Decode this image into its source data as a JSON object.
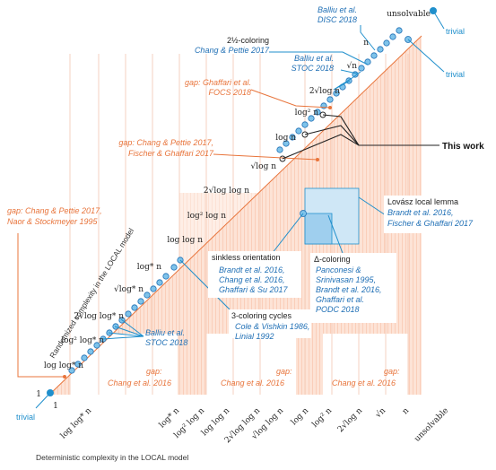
{
  "axes": {
    "x_title": "Deterministic complexity in the LOCAL model",
    "y_title": "Randomized complexity in the LOCAL model",
    "x_ticks": [
      "1",
      "log log* n",
      "log* n",
      "log² log n",
      "log log n",
      "2√log log n",
      "√log log n",
      "log n",
      "log² n",
      "2√log n",
      "√n",
      "n",
      "unsolvable"
    ],
    "y_ticks": [
      "unsolvable",
      "n",
      "√n",
      "2√log n",
      "log² n",
      "log n",
      "√log n",
      "2√log log n",
      "log² log n",
      "log log n",
      "log* n",
      "√log* n",
      "2√log log* n",
      "log² log* n",
      "log log* n",
      "1"
    ]
  },
  "labels": {
    "trivial_top": "trivial",
    "trivial_mid": "trivial",
    "trivial_bottom": "trivial",
    "unsolvable": "unsolvable",
    "this_work": "This work",
    "balliu_disc_1": "Balliu et al.",
    "balliu_disc_2": "DISC 2018",
    "two_half_1": "2½-coloring",
    "two_half_2": "Chang & Pettie 2017",
    "balliu_stoc_top_1": "Balliu et al.",
    "balliu_stoc_top_2": "STOC 2018",
    "gap_ghaffari_1": "gap: Ghaffari et al.",
    "gap_ghaffari_2": "FOCS 2018",
    "gap_chang_1": "gap: Chang & Pettie 2017,",
    "gap_chang_2": "Fischer & Ghaffari 2017",
    "gap_naor_1": "gap: Chang & Pettie 2017,",
    "gap_naor_2": "Naor & Stockmeyer 1995",
    "lovasz_1": "Lovász local lemma",
    "lovasz_2": "Brandt et al. 2016,",
    "lovasz_3": "Fischer & Ghaffari 2017",
    "sinkless_1": "sinkless orientation",
    "sinkless_2": "Brandt et al. 2016,",
    "sinkless_3": "Chang et al. 2016,",
    "sinkless_4": "Ghaffari & Su 2017",
    "delta_1": "Δ-coloring",
    "delta_2": "Panconesi &",
    "delta_3": "Srinivasan 1995,",
    "delta_4": "Brandt et al. 2016,",
    "delta_5": "Ghaffari et al.",
    "delta_6": "PODC 2018",
    "three_col_1": "3-coloring cycles",
    "three_col_2": "Cole & Vishkin 1986,",
    "three_col_3": "Linial 1992",
    "balliu_stoc_bot_1": "Balliu et al.",
    "balliu_stoc_bot_2": "STOC 2018",
    "gap_bl_1": "gap:",
    "gap_bl_2": "Chang et al. 2016",
    "gap_bm_1": "gap:",
    "gap_bm_2": "Chang et al. 2016",
    "gap_br_1": "gap:",
    "gap_br_2": "Chang et al. 2016"
  },
  "colors": {
    "blue": "#1f8fcc",
    "blue_dark": "#1f6fb5",
    "orange": "#e8743b",
    "salmon": "#f7b89b",
    "dark": "#222222"
  }
}
